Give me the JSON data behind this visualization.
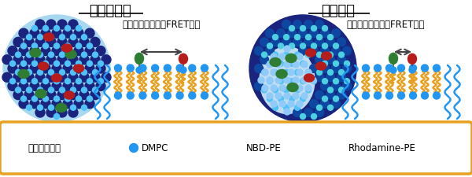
{
  "title_left": "均一混和膜",
  "title_right": "相分離膜",
  "label_left": "距離が遠い＝低いFRET効率",
  "label_right": "距離が近い＝高いFRET効率",
  "legend_labels": [
    "ポリペプチド",
    "DMPC",
    "NBD-PE",
    "Rhodamine-PE"
  ],
  "colors": {
    "light_blue_circle": "#a8d8f0",
    "dark_navy": "#1a237e",
    "dot_blue": "#1565c0",
    "cyan_dot": "#4fc3f7",
    "light_cyan": "#81d4fa",
    "green": "#2e7d32",
    "red": "#b71c1c",
    "orange_tail": "#E8A020",
    "blue_head": "#2196F3",
    "white": "#ffffff",
    "background": "#ffffff",
    "border_orange": "#E8A020",
    "arrow_color": "#444444",
    "phase_sep_light": "#c8e8f8",
    "phase_sep_dark_bg": "#90b8d8"
  },
  "fig_width": 6.0,
  "fig_height": 2.26,
  "dpi": 100
}
